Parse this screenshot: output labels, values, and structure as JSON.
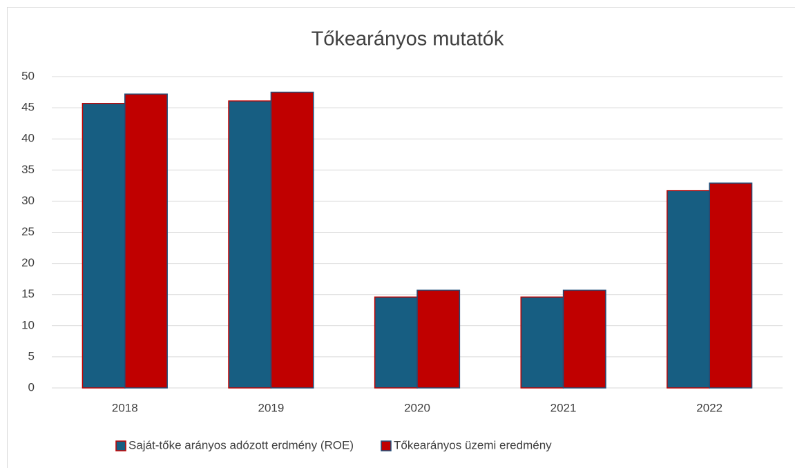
{
  "chart_data": {
    "type": "bar",
    "title": "Tőkearányos mutatók",
    "categories": [
      "2018",
      "2019",
      "2020",
      "2021",
      "2022"
    ],
    "series": [
      {
        "name": "Saját-tőke arányos adózott erdmény (ROE)",
        "color": "#175e82",
        "edgecolor": "#c00000",
        "values": [
          45.7,
          46.1,
          14.6,
          14.6,
          31.7
        ]
      },
      {
        "name": "Tőkearányos üzemi eredmény",
        "color": "#c00000",
        "edgecolor": "#1f4e79",
        "values": [
          47.2,
          47.5,
          15.7,
          15.7,
          32.9
        ]
      }
    ],
    "ylim": [
      0,
      50
    ],
    "yticks": [
      0,
      5,
      10,
      15,
      20,
      25,
      30,
      35,
      40,
      45,
      50
    ],
    "grid": true,
    "legend": "bottom"
  }
}
